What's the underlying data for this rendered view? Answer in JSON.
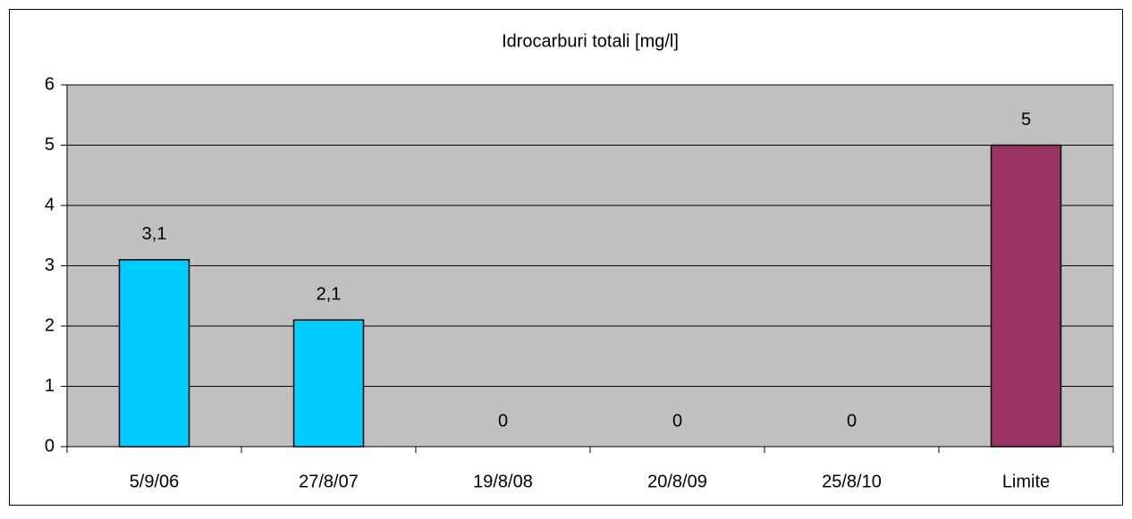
{
  "chart_data": {
    "type": "bar",
    "title": "Idrocarburi totali [mg/l]",
    "categories": [
      "5/9/06",
      "27/8/07",
      "19/8/08",
      "20/8/09",
      "25/8/10",
      "Limite"
    ],
    "values": [
      3.1,
      2.1,
      0,
      0,
      0,
      5
    ],
    "value_labels": [
      "3,1",
      "2,1",
      "0",
      "0",
      "0",
      "5"
    ],
    "colors": [
      "#00ccff",
      "#00ccff",
      "#00ccff",
      "#00ccff",
      "#00ccff",
      "#993366"
    ],
    "ylim": [
      0,
      6
    ],
    "yticks": [
      0,
      1,
      2,
      3,
      4,
      5,
      6
    ],
    "grid": true
  }
}
